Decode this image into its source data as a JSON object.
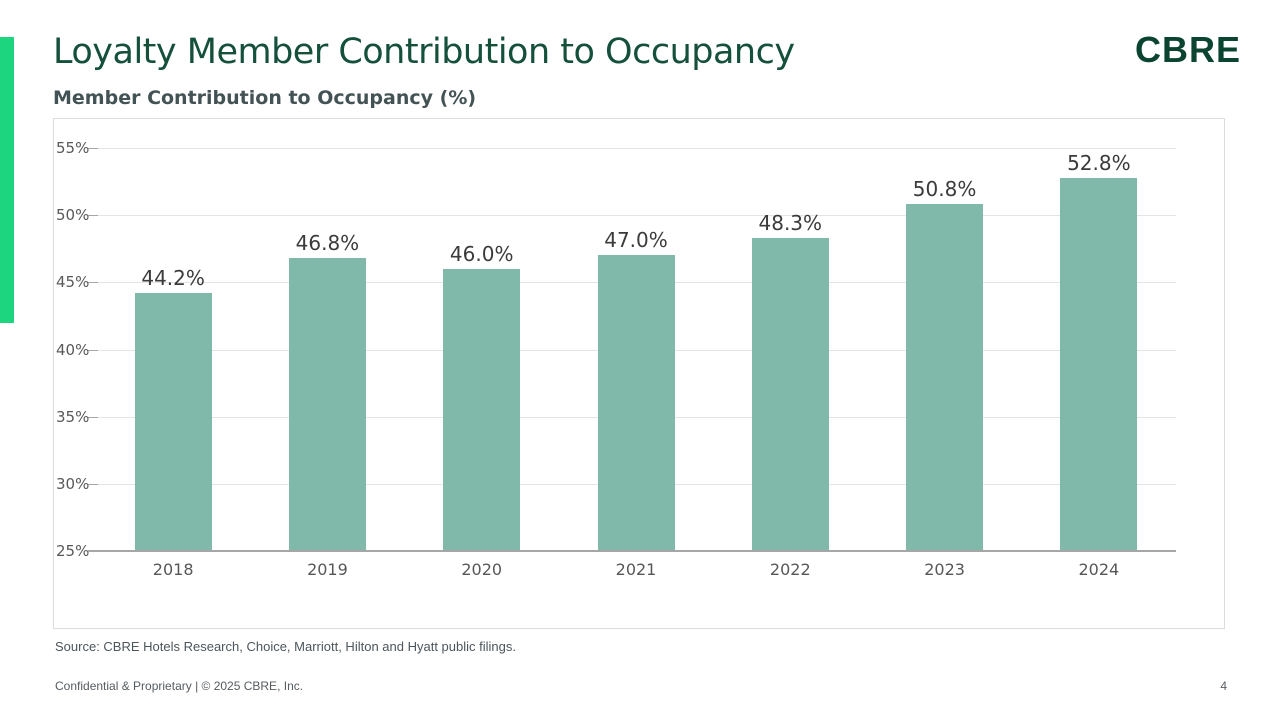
{
  "page": {
    "title": "Loyalty Member Contribution to Occupancy",
    "logo_text": "CBRE",
    "source_note": "Source: CBRE Hotels Research, Choice, Marriott, Hilton and Hyatt public filings.",
    "footer_left": "Confidential & Proprietary | © 2025 CBRE, Inc.",
    "page_number": "4"
  },
  "colors": {
    "accent_green": "#1ed57f",
    "title_green": "#14503a",
    "logo_green": "#0b4431",
    "subtitle_gray": "#435254",
    "bar_teal": "#80b8aa"
  },
  "chart_data": {
    "type": "bar",
    "title": "Member Contribution to Occupancy (%)",
    "categories": [
      "2018",
      "2019",
      "2020",
      "2021",
      "2022",
      "2023",
      "2024"
    ],
    "values": [
      44.2,
      46.8,
      46.0,
      47.0,
      48.3,
      50.8,
      52.8
    ],
    "value_labels": [
      "44.2%",
      "46.8%",
      "46.0%",
      "47.0%",
      "48.3%",
      "50.8%",
      "52.8%"
    ],
    "xlabel": "",
    "ylabel": "",
    "ylim": [
      25,
      55
    ],
    "yticks": [
      25,
      30,
      35,
      40,
      45,
      50,
      55
    ],
    "ytick_labels": [
      "25%",
      "30%",
      "35%",
      "40%",
      "45%",
      "50%",
      "55%"
    ],
    "grid": true,
    "legend": "none",
    "bar_color": "#80b8aa"
  }
}
